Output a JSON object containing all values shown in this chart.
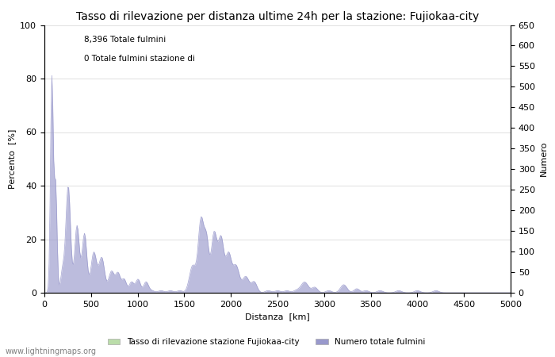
{
  "title": "Tasso di rilevazione per distanza ultime 24h per la stazione: Fujiokaa-city",
  "xlabel": "Distanza  [km]",
  "ylabel_left": "Percento  [%]",
  "ylabel_right": "Numero",
  "xlim": [
    0,
    5000
  ],
  "ylim_left": [
    0,
    100
  ],
  "ylim_right": [
    0,
    650
  ],
  "annotation1": "8,396 Totale fulmini",
  "annotation2": "0 Totale fulmini stazione di",
  "legend1": "Tasso di rilevazione stazione Fujiokaa-city",
  "legend2": "Numero totale fulmini",
  "watermark": "www.lightningmaps.org",
  "color_blue": "#9999cc",
  "color_green": "#bbddaa",
  "title_fontsize": 10,
  "axis_fontsize": 8,
  "tick_fontsize": 8,
  "xticks": [
    0,
    500,
    1000,
    1500,
    2000,
    2500,
    3000,
    3500,
    4000,
    4500,
    5000
  ],
  "yticks_left": [
    0,
    20,
    40,
    60,
    80,
    100
  ],
  "yticks_right": [
    0,
    50,
    100,
    150,
    200,
    250,
    300,
    350,
    400,
    450,
    500,
    550,
    600,
    650
  ]
}
